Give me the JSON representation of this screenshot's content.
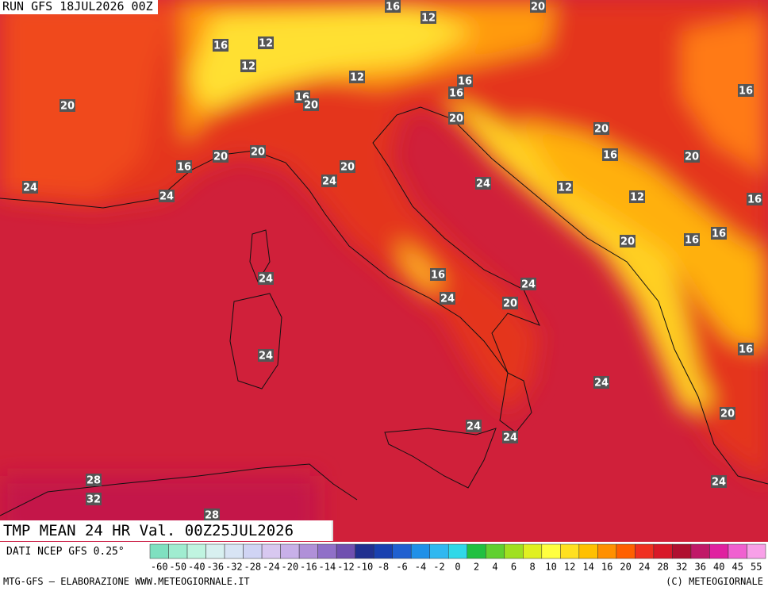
{
  "header": {
    "run": "RUN GFS 18JUL2026 00Z"
  },
  "map": {
    "contour_labels": [
      16,
      12,
      20,
      16,
      12,
      12,
      12,
      16,
      16,
      20,
      16,
      20,
      16,
      20,
      20,
      20,
      20,
      16,
      20,
      16,
      20,
      24,
      24,
      12,
      12,
      24,
      24,
      16,
      20,
      16,
      16,
      24,
      16,
      24,
      24,
      20,
      24,
      16,
      24,
      20,
      24,
      24,
      28,
      32,
      24,
      28
    ]
  },
  "product": {
    "title": "TMP MEAN 24 HR Val. 00Z25JUL2026",
    "source": "DATI NCEP GFS 0.25°"
  },
  "legend": {
    "labels": [
      -60,
      -50,
      -40,
      -36,
      -32,
      -28,
      -24,
      -20,
      -16,
      -14,
      -12,
      -10,
      -8,
      -6,
      -4,
      -2,
      0,
      2,
      4,
      6,
      8,
      10,
      12,
      14,
      16,
      20,
      24,
      28,
      32,
      36,
      40,
      45,
      55
    ],
    "colors": [
      "#7fe0c0",
      "#a0ecd0",
      "#c0f4e0",
      "#d8f0f0",
      "#d8e4f4",
      "#d0d4f4",
      "#d8c8f0",
      "#c8b0e8",
      "#b090d8",
      "#9070c8",
      "#7050b0",
      "#203090",
      "#1840b0",
      "#2060d0",
      "#2090e8",
      "#30b8f0",
      "#30d8e8",
      "#20c040",
      "#60d030",
      "#a0e020",
      "#e0f020",
      "#ffff40",
      "#ffe020",
      "#ffc000",
      "#ff9000",
      "#ff6000",
      "#f03020",
      "#d81828",
      "#b01030",
      "#c01868",
      "#e020a0",
      "#f060d0",
      "#f8a0e8"
    ]
  },
  "footer": {
    "left": "MTG-GFS — ELABORAZIONE WWW.METEOGIORNALE.IT",
    "right": "(C) METEOGIORNALE"
  }
}
